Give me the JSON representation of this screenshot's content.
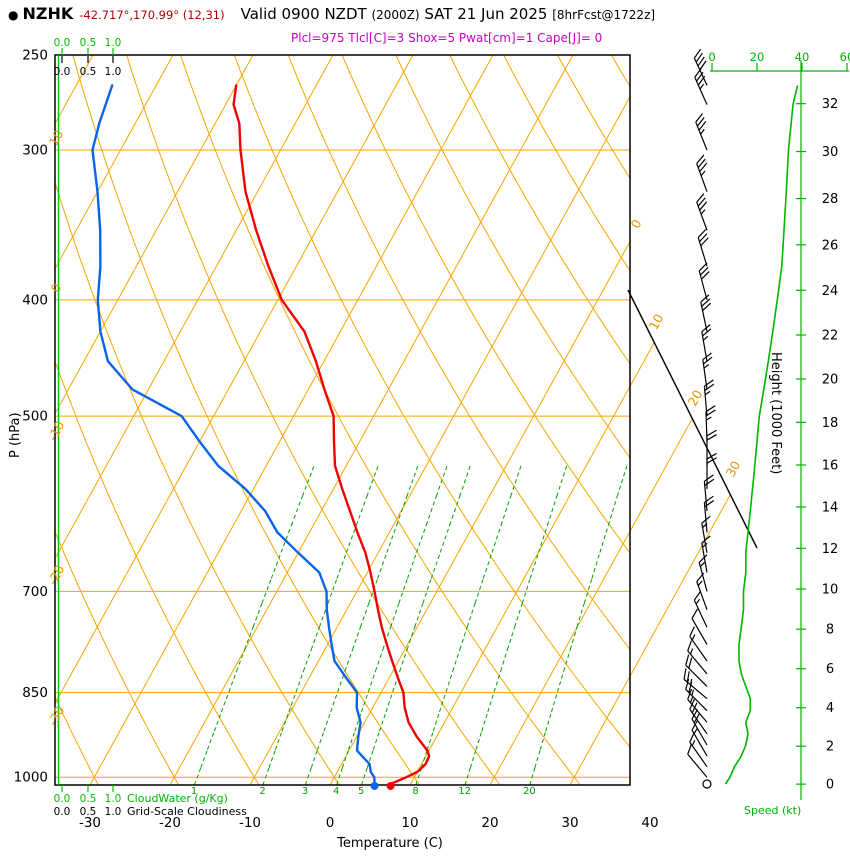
{
  "header": {
    "bullet": "●",
    "station": "NZHK",
    "coords": "-42.717°,170.99° (12,31)",
    "valid_prefix": "Valid 0900 NZDT",
    "valid_z": "(2000Z)",
    "valid_date": "SAT 21 Jun 2025",
    "fcst": "[8hrFcst@1722z]",
    "indices": "Plcl=975 Tlcl[C]=3 Shox=5 Pwat[cm]=1 Cape[J]= 0"
  },
  "axes": {
    "pressure_label": "P (hPa)",
    "pressure_ticks": [
      250,
      300,
      400,
      500,
      700,
      850,
      1000
    ],
    "temp_label": "Temperature (C)",
    "temp_ticks": [
      -30,
      -20,
      -10,
      0,
      10,
      20,
      30,
      40
    ],
    "height_label": "Height (1000 Feet)",
    "height_ticks": [
      0,
      2,
      4,
      6,
      8,
      10,
      12,
      14,
      16,
      18,
      20,
      22,
      24,
      26,
      28,
      30,
      32
    ],
    "speed_label": "Speed (kt)",
    "speed_ticks": [
      0,
      20,
      40,
      60
    ],
    "cloudwater_label": "CloudWater (g/Kg)",
    "cloudiness_label": "Grid-Scale Cloudiness",
    "cloud_scale": [
      "0.0",
      "0.5",
      "1.0"
    ]
  },
  "grid": {
    "isotherm_exit_labels": [
      0,
      10,
      20,
      30
    ],
    "adiabat_exit_labels": [
      10,
      0,
      -10,
      -20,
      -30
    ],
    "mixing_ratios": [
      1,
      2,
      3,
      4,
      5,
      8,
      12,
      20
    ]
  },
  "colors": {
    "grid_orange": "#f7a500",
    "label_orange": "#e39600",
    "mixing_green": "#00a000",
    "bright_green": "#00b400",
    "cloud_green": "#00c000",
    "temp_red": "#f00000",
    "dewpoint_blue": "#0a64e8",
    "magenta": "#c800c8",
    "coord_red": "#b40000"
  },
  "chart_data": {
    "type": "skewt_log_p_sounding",
    "title": "NZHK forecast sounding valid 0900 NZDT SAT 21 Jun 2025",
    "pressure_axis_hpa": [
      250,
      1015
    ],
    "temperature_axis_c": [
      -35,
      45
    ],
    "indices": {
      "plcl_hpa": 975,
      "tlcl_c": 3,
      "showalter": 5,
      "pwat_cm": 1,
      "cape_j": 0
    },
    "surface": {
      "temp_c": 7.5,
      "dewpoint_c": 5.5
    },
    "temperature_profile": {
      "pressure_hpa": [
        1013,
        1000,
        990,
        975,
        960,
        950,
        925,
        900,
        875,
        850,
        825,
        800,
        775,
        750,
        725,
        700,
        675,
        650,
        625,
        600,
        575,
        550,
        525,
        500,
        475,
        450,
        425,
        400,
        375,
        350,
        325,
        300,
        285,
        275,
        265
      ],
      "temp_c": [
        7.5,
        9,
        10,
        10.5,
        10.4,
        9.8,
        7.5,
        5.5,
        4,
        2.8,
        1,
        -0.8,
        -2.6,
        -4.4,
        -6.1,
        -7.8,
        -9.6,
        -11.6,
        -14,
        -16.4,
        -18.9,
        -21.4,
        -23.2,
        -25,
        -28,
        -31,
        -34.5,
        -39.5,
        -43.5,
        -47.5,
        -51.5,
        -55,
        -57,
        -59,
        -60
      ]
    },
    "dewpoint_profile": {
      "pressure_hpa": [
        1013,
        1000,
        990,
        975,
        960,
        950,
        925,
        900,
        875,
        850,
        825,
        800,
        775,
        750,
        725,
        700,
        675,
        650,
        625,
        600,
        575,
        550,
        525,
        500,
        475,
        450,
        425,
        400,
        375,
        350,
        325,
        300,
        285,
        275,
        265
      ],
      "temp_c": [
        5.5,
        5,
        4.2,
        3.5,
        2,
        1,
        0.2,
        -0.5,
        -2,
        -3,
        -5.5,
        -8,
        -9.5,
        -11,
        -12.5,
        -13.8,
        -16,
        -20,
        -24,
        -27,
        -31,
        -36,
        -40,
        -44,
        -52,
        -57,
        -60,
        -62.5,
        -64.5,
        -67,
        -70,
        -73.5,
        -74.5,
        -75,
        -75.5
      ]
    },
    "wind_barbs": [
      {
        "p": 1013,
        "dir": 0,
        "kt": 0
      },
      {
        "p": 1000,
        "dir": 320,
        "kt": 10
      },
      {
        "p": 980,
        "dir": 325,
        "kt": 15
      },
      {
        "p": 960,
        "dir": 330,
        "kt": 15
      },
      {
        "p": 940,
        "dir": 330,
        "kt": 20
      },
      {
        "p": 920,
        "dir": 325,
        "kt": 20
      },
      {
        "p": 900,
        "dir": 320,
        "kt": 15
      },
      {
        "p": 880,
        "dir": 315,
        "kt": 25
      },
      {
        "p": 860,
        "dir": 310,
        "kt": 25
      },
      {
        "p": 840,
        "dir": 315,
        "kt": 20
      },
      {
        "p": 820,
        "dir": 320,
        "kt": 15
      },
      {
        "p": 800,
        "dir": 325,
        "kt": 15
      },
      {
        "p": 775,
        "dir": 330,
        "kt": 10
      },
      {
        "p": 750,
        "dir": 335,
        "kt": 15
      },
      {
        "p": 725,
        "dir": 340,
        "kt": 15
      },
      {
        "p": 700,
        "dir": 345,
        "kt": 15
      },
      {
        "p": 675,
        "dir": 350,
        "kt": 15
      },
      {
        "p": 650,
        "dir": 350,
        "kt": 15
      },
      {
        "p": 625,
        "dir": 355,
        "kt": 20
      },
      {
        "p": 600,
        "dir": 355,
        "kt": 20
      },
      {
        "p": 575,
        "dir": 360,
        "kt": 20
      },
      {
        "p": 550,
        "dir": 360,
        "kt": 20
      },
      {
        "p": 525,
        "dir": 358,
        "kt": 25
      },
      {
        "p": 500,
        "dir": 355,
        "kt": 25
      },
      {
        "p": 475,
        "dir": 352,
        "kt": 25
      },
      {
        "p": 450,
        "dir": 350,
        "kt": 25
      },
      {
        "p": 425,
        "dir": 348,
        "kt": 30
      },
      {
        "p": 400,
        "dir": 345,
        "kt": 30
      },
      {
        "p": 375,
        "dir": 343,
        "kt": 30
      },
      {
        "p": 350,
        "dir": 340,
        "kt": 35
      },
      {
        "p": 325,
        "dir": 340,
        "kt": 35
      },
      {
        "p": 300,
        "dir": 338,
        "kt": 35
      },
      {
        "p": 275,
        "dir": 336,
        "kt": 35
      },
      {
        "p": 265,
        "dir": 335,
        "kt": 40
      }
    ],
    "wind_speed_profile": {
      "pressure_hpa": [
        1013,
        1000,
        980,
        960,
        940,
        920,
        900,
        880,
        860,
        840,
        820,
        800,
        775,
        750,
        725,
        700,
        675,
        650,
        625,
        600,
        575,
        550,
        525,
        500,
        475,
        450,
        425,
        400,
        375,
        350,
        325,
        300,
        275,
        265
      ],
      "kt": [
        6,
        8,
        10,
        13,
        15,
        16,
        15,
        17,
        17,
        15,
        13,
        12,
        12,
        13,
        14,
        14,
        15,
        15,
        16,
        17,
        18,
        19,
        20,
        21,
        23,
        25,
        27,
        29,
        31,
        32,
        33,
        34,
        36,
        38
      ]
    },
    "cloudwater_profile_g_kg": "zero at all levels",
    "grid_scale_cloudiness": "zero at all levels"
  }
}
